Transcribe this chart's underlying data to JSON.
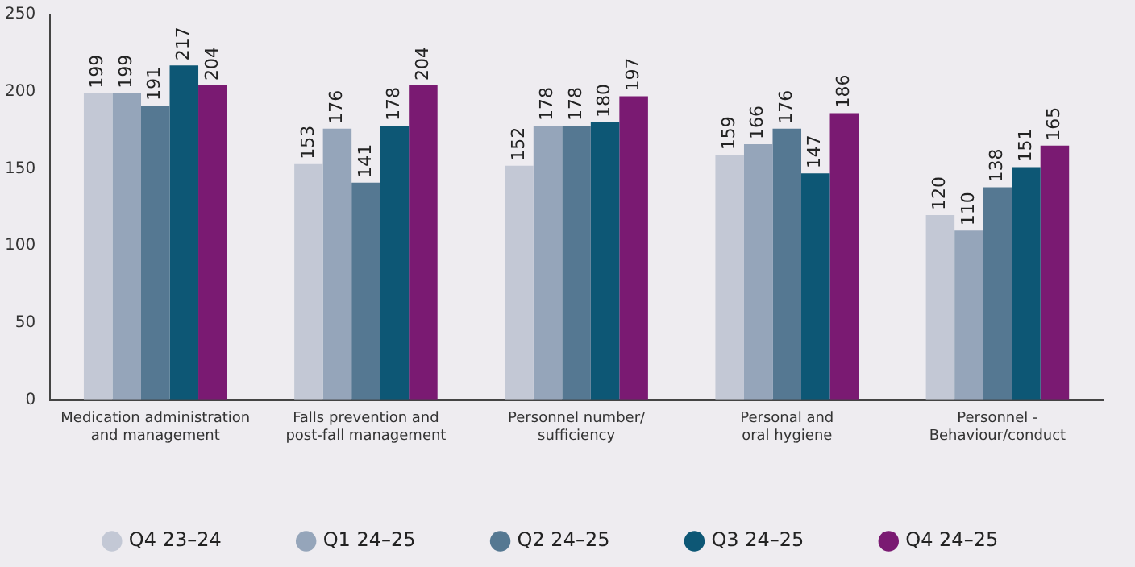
{
  "chart_data": {
    "type": "bar",
    "categories": [
      "Medication administration and management",
      "Falls prevention and post-fall management",
      "Personnel number/ sufficiency",
      "Personal and oral hygiene",
      "Personnel - Behaviour/conduct"
    ],
    "series": [
      {
        "name": "Q4 23–24",
        "color": "#c3c8d5",
        "values": [
          199,
          153,
          152,
          159,
          120
        ]
      },
      {
        "name": "Q1 24–25",
        "color": "#95a5ba",
        "values": [
          199,
          176,
          178,
          166,
          110
        ]
      },
      {
        "name": "Q2 24–25",
        "color": "#557892",
        "values": [
          191,
          141,
          178,
          176,
          138
        ]
      },
      {
        "name": "Q3 24–25",
        "color": "#0d5775",
        "values": [
          217,
          178,
          180,
          147,
          151
        ]
      },
      {
        "name": "Q4 24–25",
        "color": "#7a1a72",
        "values": [
          204,
          204,
          197,
          186,
          165
        ]
      }
    ],
    "ylim": [
      0,
      250
    ],
    "yticks": [
      0,
      50,
      100,
      150,
      200,
      250
    ],
    "grid": false,
    "legend": "bottom",
    "data_labels": true
  }
}
